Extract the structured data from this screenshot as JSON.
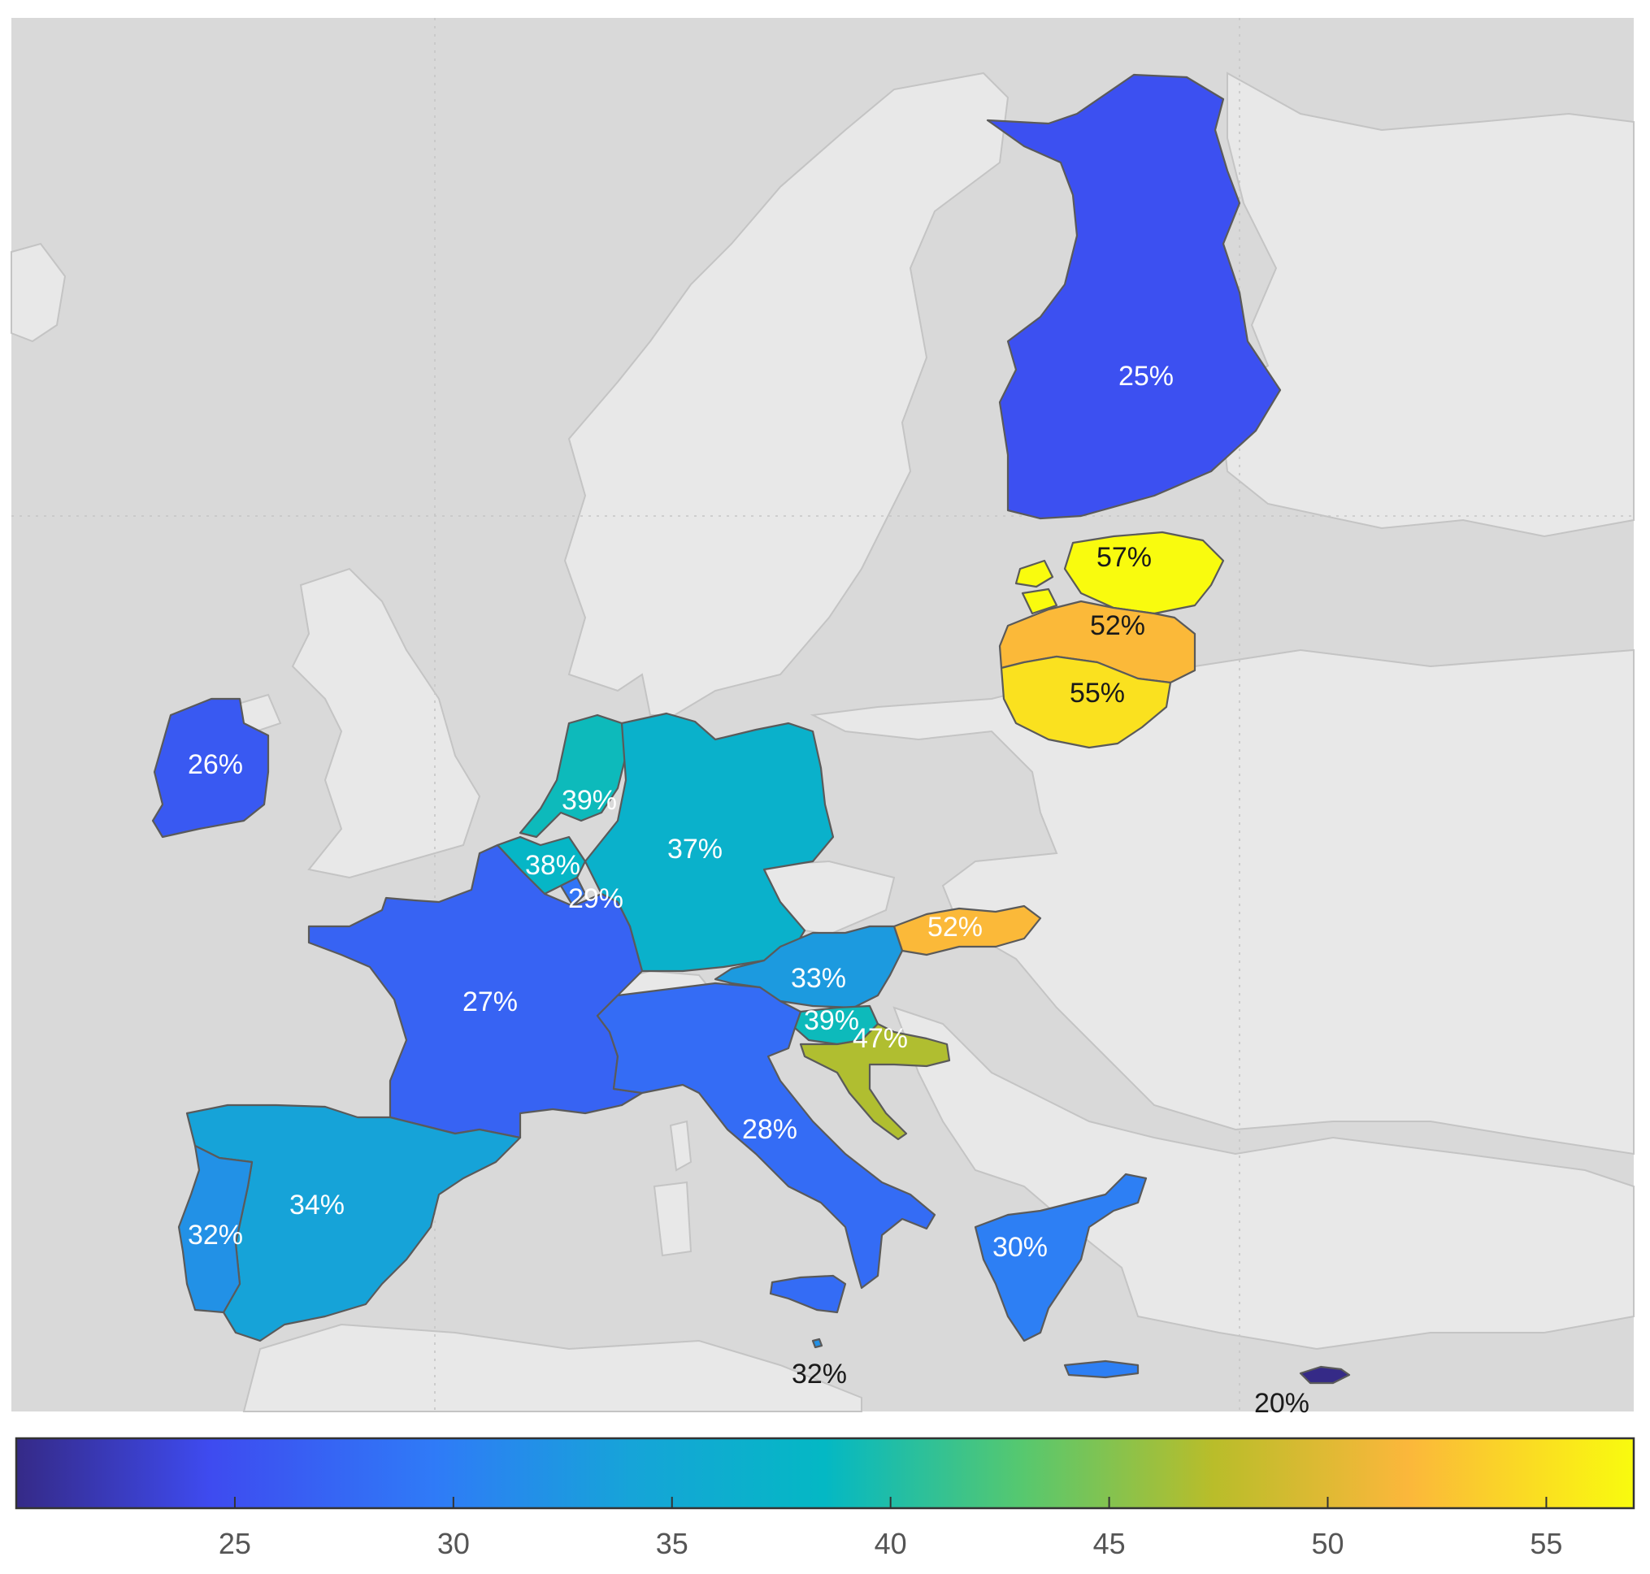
{
  "chart_data": {
    "type": "choropleth",
    "regions": [
      {
        "name": "Finland",
        "value": 25,
        "label": "25%",
        "label_style": "light"
      },
      {
        "name": "Estonia",
        "value": 57,
        "label": "57%",
        "label_style": "dark"
      },
      {
        "name": "Latvia",
        "value": 52,
        "label": "52%",
        "label_style": "dark"
      },
      {
        "name": "Lithuania",
        "value": 55,
        "label": "55%",
        "label_style": "dark"
      },
      {
        "name": "Ireland",
        "value": 26,
        "label": "26%",
        "label_style": "light"
      },
      {
        "name": "Netherlands",
        "value": 39,
        "label": "39%",
        "label_style": "light"
      },
      {
        "name": "Belgium",
        "value": 38,
        "label": "38%",
        "label_style": "light"
      },
      {
        "name": "Luxembourg",
        "value": 29,
        "label": "29%",
        "label_style": "light"
      },
      {
        "name": "Germany",
        "value": 37,
        "label": "37%",
        "label_style": "light"
      },
      {
        "name": "France",
        "value": 27,
        "label": "27%",
        "label_style": "light"
      },
      {
        "name": "Slovakia",
        "value": 52,
        "label": "52%",
        "label_style": "light"
      },
      {
        "name": "Austria",
        "value": 33,
        "label": "33%",
        "label_style": "light"
      },
      {
        "name": "Slovenia",
        "value": 39,
        "label": "39%",
        "label_style": "light"
      },
      {
        "name": "Croatia",
        "value": 47,
        "label": "47%",
        "label_style": "light"
      },
      {
        "name": "Italy",
        "value": 28,
        "label": "28%",
        "label_style": "light"
      },
      {
        "name": "Spain",
        "value": 34,
        "label": "34%",
        "label_style": "light"
      },
      {
        "name": "Portugal",
        "value": 32,
        "label": "32%",
        "label_style": "light"
      },
      {
        "name": "Greece",
        "value": 30,
        "label": "30%",
        "label_style": "light"
      },
      {
        "name": "Malta",
        "value": 32,
        "label": "32%",
        "label_style": "dark"
      },
      {
        "name": "Cyprus",
        "value": 20,
        "label": "20%",
        "label_style": "dark"
      }
    ],
    "colorbar": {
      "min": 20,
      "max": 57,
      "ticks": [
        25,
        30,
        35,
        40,
        45,
        50,
        55
      ],
      "tick_labels": [
        "25",
        "30",
        "35",
        "40",
        "45",
        "50",
        "55"
      ],
      "placement": "bottom",
      "colormap": "parula"
    },
    "grid": true,
    "colors": {
      "sea": "#d9d9d9",
      "land": "#e8e8e8",
      "border": "#c4c4c4",
      "country_border": "#5a5a5a"
    }
  }
}
